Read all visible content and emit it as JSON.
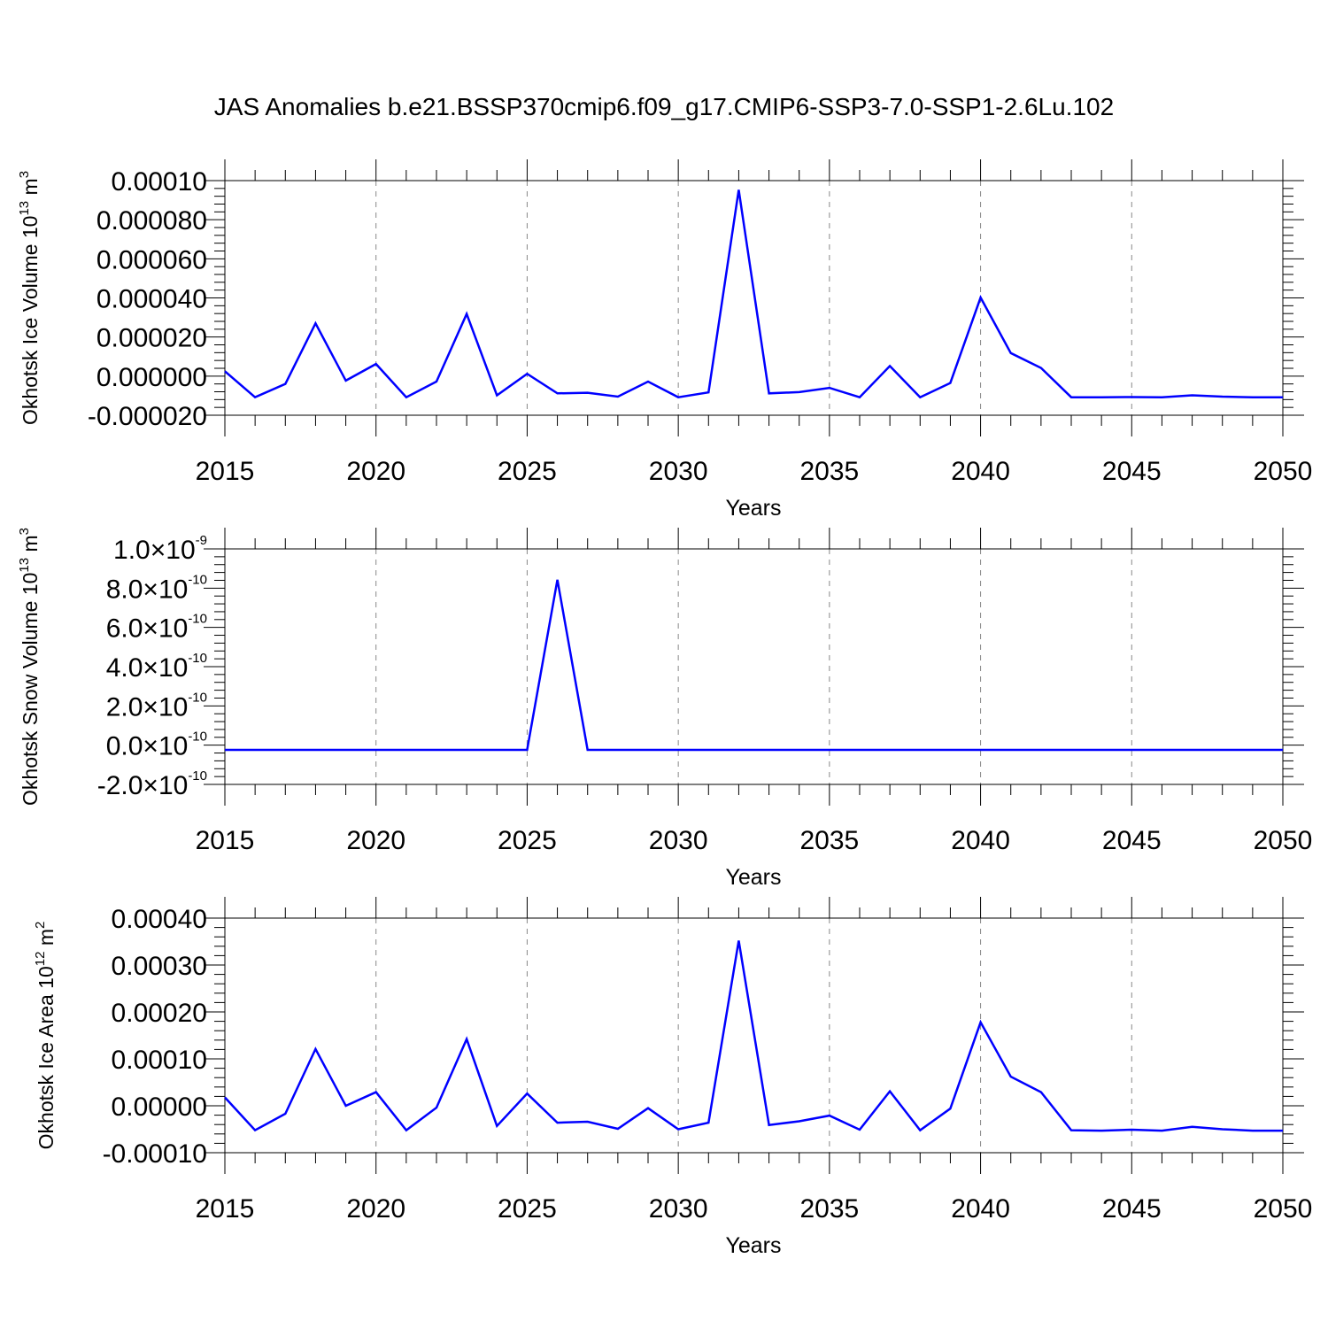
{
  "title": "JAS Anomalies b.e21.BSSP370cmip6.f09_g17.CMIP6-SSP3-7.0-SSP1-2.6Lu.102",
  "colors": {
    "series": "#0000ff",
    "axis": "#000000",
    "grid": "#888888"
  },
  "chart_data": [
    {
      "type": "line",
      "title": "JAS Anomalies b.e21.BSSP370cmip6.f09_g17.CMIP6-SSP3-7.0-SSP1-2.6Lu.102",
      "xlabel": "Years",
      "ylabel": {
        "text": "Okhotsk Ice Volume 10",
        "exp": "13",
        "unit": " m",
        "unit_exp": "3"
      },
      "xlim": [
        2015,
        2050
      ],
      "ylim": [
        -2e-05,
        0.0001
      ],
      "x_ticks": [
        2015,
        2020,
        2025,
        2030,
        2035,
        2040,
        2045,
        2050
      ],
      "x_tick_labels": [
        "2015",
        "2020",
        "2025",
        "2030",
        "2035",
        "2040",
        "2045",
        "2050"
      ],
      "y_ticks": [
        -2e-05,
        0.0,
        2e-05,
        4e-05,
        6e-05,
        8e-05,
        0.0001
      ],
      "y_tick_labels": [
        "-0.000020",
        "0.000000",
        "0.000020",
        "0.000040",
        "0.000060",
        "0.000080",
        "0.00010"
      ],
      "grid": "dashed vertical at major x ticks",
      "x": [
        2015,
        2016,
        2017,
        2018,
        2019,
        2020,
        2021,
        2022,
        2023,
        2024,
        2025,
        2026,
        2027,
        2028,
        2029,
        2030,
        2031,
        2032,
        2033,
        2034,
        2035,
        2036,
        2037,
        2038,
        2039,
        2040,
        2041,
        2042,
        2043,
        2044,
        2045,
        2046,
        2047,
        2048,
        2049,
        2050
      ],
      "series": [
        {
          "name": "Okhotsk Ice Volume",
          "values": [
            2.5e-06,
            -1.08e-05,
            -4e-06,
            2.7e-05,
            -2.3e-06,
            6.2e-06,
            -1.08e-05,
            -2.8e-06,
            3.18e-05,
            -9.8e-06,
            1.2e-06,
            -8.8e-06,
            -8.5e-06,
            -1.05e-05,
            -2.8e-06,
            -1.08e-05,
            -8.3e-06,
            9.53e-05,
            -8.8e-06,
            -8.2e-06,
            -6e-06,
            -1.08e-05,
            5.2e-06,
            -1.08e-05,
            -3.5e-06,
            4.02e-05,
            1.18e-05,
            4.2e-06,
            -1.08e-05,
            -1.08e-05,
            -1.07e-05,
            -1.08e-05,
            -9.8e-06,
            -1.05e-05,
            -1.08e-05,
            -1.08e-05
          ]
        }
      ]
    },
    {
      "type": "line",
      "xlabel": "Years",
      "ylabel": {
        "text": "Okhotsk Snow Volume 10",
        "exp": "13",
        "unit": "  m",
        "unit_exp": "3"
      },
      "xlim": [
        2015,
        2050
      ],
      "ylim": [
        -2e-10,
        1e-09
      ],
      "x_ticks": [
        2015,
        2020,
        2025,
        2030,
        2035,
        2040,
        2045,
        2050
      ],
      "x_tick_labels": [
        "2015",
        "2020",
        "2025",
        "2030",
        "2035",
        "2040",
        "2045",
        "2050"
      ],
      "y_ticks": [
        -2e-10,
        0,
        2e-10,
        4e-10,
        6e-10,
        8e-10,
        1e-09
      ],
      "y_tick_labels": [
        {
          "mant": "-2.0",
          "times": "×",
          "base": "10",
          "exp": "-10"
        },
        {
          "mant": "0.0",
          "times": "×",
          "base": "10",
          "exp": "-10"
        },
        {
          "mant": "2.0",
          "times": "×",
          "base": "10",
          "exp": "-10"
        },
        {
          "mant": "4.0",
          "times": "×",
          "base": "10",
          "exp": "-10"
        },
        {
          "mant": "6.0",
          "times": "×",
          "base": "10",
          "exp": "-10"
        },
        {
          "mant": "8.0",
          "times": "×",
          "base": "10",
          "exp": "-10"
        },
        {
          "mant": "1.0",
          "times": "×",
          "base": "10",
          "exp": "-9"
        }
      ],
      "grid": "dashed vertical at major x ticks",
      "x": [
        2015,
        2016,
        2017,
        2018,
        2019,
        2020,
        2021,
        2022,
        2023,
        2024,
        2025,
        2026,
        2027,
        2028,
        2029,
        2030,
        2031,
        2032,
        2033,
        2034,
        2035,
        2036,
        2037,
        2038,
        2039,
        2040,
        2041,
        2042,
        2043,
        2044,
        2045,
        2046,
        2047,
        2048,
        2049,
        2050
      ],
      "series": [
        {
          "name": "Okhotsk Snow Volume",
          "values": [
            -2.4e-11,
            -2.4e-11,
            -2.4e-11,
            -2.4e-11,
            -2.4e-11,
            -2.4e-11,
            -2.4e-11,
            -2.4e-11,
            -2.4e-11,
            -2.4e-11,
            -2.4e-11,
            8.43e-10,
            -2.4e-11,
            -2.4e-11,
            -2.4e-11,
            -2.4e-11,
            -2.4e-11,
            -2.4e-11,
            -2.4e-11,
            -2.4e-11,
            -2.4e-11,
            -2.4e-11,
            -2.4e-11,
            -2.4e-11,
            -2.4e-11,
            -2.4e-11,
            -2.4e-11,
            -2.4e-11,
            -2.4e-11,
            -2.4e-11,
            -2.4e-11,
            -2.4e-11,
            -2.4e-11,
            -2.4e-11,
            -2.4e-11,
            -2.4e-11
          ]
        }
      ]
    },
    {
      "type": "line",
      "xlabel": "Years",
      "ylabel": {
        "text": "Okhotsk Ice Area 10",
        "exp": "12",
        "unit": " m",
        "unit_exp": "2"
      },
      "xlim": [
        2015,
        2050
      ],
      "ylim": [
        -0.0001,
        0.0004
      ],
      "x_ticks": [
        2015,
        2020,
        2025,
        2030,
        2035,
        2040,
        2045,
        2050
      ],
      "x_tick_labels": [
        "2015",
        "2020",
        "2025",
        "2030",
        "2035",
        "2040",
        "2045",
        "2050"
      ],
      "y_ticks": [
        -0.0001,
        0.0,
        0.0001,
        0.0002,
        0.0003,
        0.0004
      ],
      "y_tick_labels": [
        "-0.00010",
        "0.00000",
        "0.00010",
        "0.00020",
        "0.00030",
        "0.00040"
      ],
      "grid": "dashed vertical at major x ticks",
      "x": [
        2015,
        2016,
        2017,
        2018,
        2019,
        2020,
        2021,
        2022,
        2023,
        2024,
        2025,
        2026,
        2027,
        2028,
        2029,
        2030,
        2031,
        2032,
        2033,
        2034,
        2035,
        2036,
        2037,
        2038,
        2039,
        2040,
        2041,
        2042,
        2043,
        2044,
        2045,
        2046,
        2047,
        2048,
        2049,
        2050
      ],
      "series": [
        {
          "name": "Okhotsk Ice Area",
          "values": [
            1.8e-05,
            -5.2e-05,
            -1.7e-05,
            0.000121,
            0.0,
            2.9e-05,
            -5.2e-05,
            -4e-06,
            0.000142,
            -4.3e-05,
            2.6e-05,
            -3.6e-05,
            -3.4e-05,
            -4.9e-05,
            -5e-06,
            -5e-05,
            -3.6e-05,
            0.000352,
            -4.1e-05,
            -3.3e-05,
            -2.1e-05,
            -5.1e-05,
            3.1e-05,
            -5.2e-05,
            -6e-06,
            0.000178,
            6.2e-05,
            2.9e-05,
            -5.2e-05,
            -5.3e-05,
            -5.1e-05,
            -5.3e-05,
            -4.5e-05,
            -5e-05,
            -5.3e-05,
            -5.3e-05
          ]
        }
      ]
    }
  ]
}
